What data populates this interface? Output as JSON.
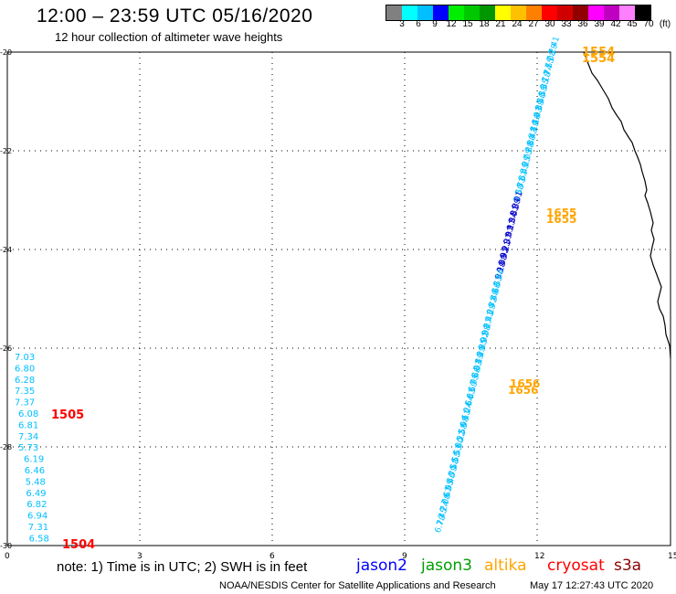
{
  "header": {
    "title": "12:00 – 23:59 UTC 05/16/2020",
    "subtitle": "12 hour collection of altimeter wave heights"
  },
  "legend": {
    "colors": [
      "#808080",
      "#00ffff",
      "#00bfff",
      "#0000ff",
      "#00ee00",
      "#00c800",
      "#009600",
      "#ffff00",
      "#ffc000",
      "#ff8000",
      "#ff0000",
      "#d00000",
      "#900000",
      "#ff00ff",
      "#c000c0",
      "#ff80ff",
      "#000000"
    ],
    "labels": [
      "3",
      "6",
      "9",
      "12",
      "15",
      "18",
      "21",
      "24",
      "27",
      "30",
      "33",
      "36",
      "39",
      "42",
      "45",
      "70",
      "(ft)"
    ]
  },
  "map": {
    "y_ticks": [
      "-20",
      "-22",
      "-24",
      "-26",
      "-28",
      "-30"
    ],
    "x_ticks": [
      "0",
      "3",
      "6",
      "9",
      "12",
      "15"
    ],
    "left_track_values": [
      "7.03",
      "6.80",
      "6.28",
      "7.35",
      "7.37",
      "6.08",
      "6.81",
      "7.34",
      "5.73",
      "6.19",
      "6.46",
      "5.48",
      "6.49",
      "6.82",
      "6.94",
      "7.31",
      "6.58"
    ],
    "diag_track_values_top": [
      "7.41",
      "7.29",
      "7.08",
      "7.55",
      "7.74",
      "8.18",
      "8.35",
      "8.55",
      "8.50",
      "8.39",
      "8.43",
      "8.16",
      "8.19",
      "8.43",
      "7.80",
      "7.88",
      "8.05",
      "8.25",
      "8.45",
      "8.61",
      "8.71",
      "8.50"
    ],
    "diag_track_values_mid": [
      "9.01",
      "8.89",
      "9.31",
      "9.34",
      "9.17",
      "9.07",
      "9.37",
      "9.21",
      "8.92",
      "9.08",
      "9.10"
    ],
    "diag_track_values_low": [
      "8.86",
      "8.53",
      "8.66",
      "8.40",
      "8.72",
      "9.29",
      "8.41",
      "9.27",
      "9.08",
      "9.02",
      "8.85",
      "8.29",
      "8.19",
      "8.03",
      "7.66",
      "6.95",
      "6.59",
      "6.33",
      "6.64",
      "6.24",
      "6.11",
      "5.98",
      "5.58",
      "6.22",
      "5.80",
      "5.53",
      "5.55",
      "5.58",
      "5.79",
      "5.46",
      "6.95",
      "7.67",
      "7.00",
      "7.24",
      "7.45",
      "6.70"
    ],
    "time_labels": [
      {
        "text": "1505",
        "color": "#ff0000"
      },
      {
        "text": "1504",
        "color": "#ff0000"
      },
      {
        "text": "1554",
        "color": "#ffa500"
      },
      {
        "text": "1554",
        "color": "#ffa500"
      },
      {
        "text": "1655",
        "color": "#ffa500"
      },
      {
        "text": "1655",
        "color": "#ffa500"
      },
      {
        "text": "1656",
        "color": "#ffa500"
      },
      {
        "text": "1656",
        "color": "#ffa500"
      }
    ]
  },
  "footer": {
    "note": "note: 1) Time is in UTC; 2) SWH is in feet",
    "satellites": [
      {
        "name": "jason2",
        "color": "#0000ff"
      },
      {
        "name": "jason3",
        "color": "#00a000"
      },
      {
        "name": "altika",
        "color": "#ffa500"
      },
      {
        "name": "cryosat",
        "color": "#ff0000"
      },
      {
        "name": "s3a",
        "color": "#8b0000"
      }
    ],
    "credit": "NOAA/NESDIS Center for Satellite Applications and Research",
    "timestamp": "May 17 12:27:43 UTC 2020"
  }
}
